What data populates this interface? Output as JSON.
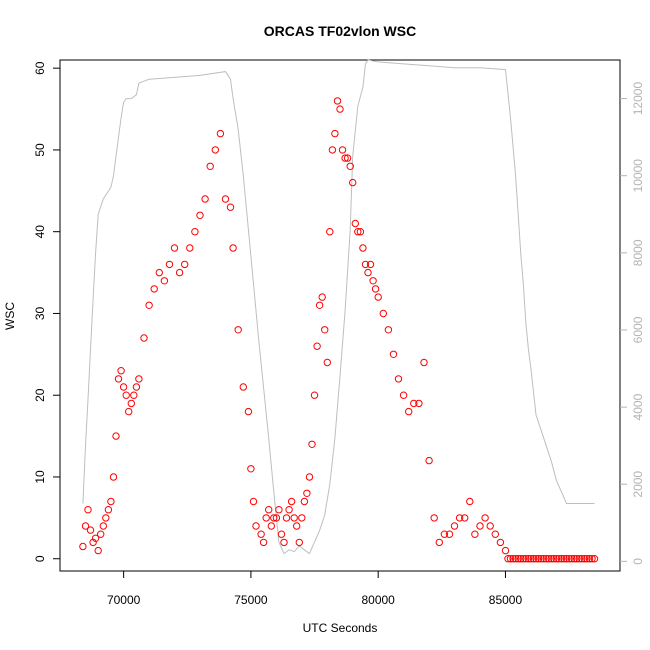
{
  "chart_data": {
    "type": "scatter",
    "title": "ORCAS TF02vlon WSC",
    "xlabel": "UTC Seconds",
    "ylabel": "WSC",
    "xlim": [
      67500,
      89500
    ],
    "ylim": [
      -1.5,
      61
    ],
    "y2lim": [
      -250,
      13000
    ],
    "x_ticks": [
      70000,
      75000,
      80000,
      85000
    ],
    "x_tick_labels": [
      "70000",
      "75000",
      "80000",
      "85000"
    ],
    "y_ticks": [
      0,
      10,
      20,
      30,
      40,
      50,
      60
    ],
    "y_tick_labels": [
      "0",
      "10",
      "20",
      "30",
      "40",
      "50",
      "60"
    ],
    "y2_ticks": [
      0,
      2000,
      4000,
      6000,
      8000,
      10000,
      12000
    ],
    "y2_tick_labels": [
      "0",
      "2000",
      "4000",
      "6000",
      "8000",
      "10000",
      "12000"
    ],
    "grid": false,
    "legend": "none",
    "colors": {
      "points": "#ff0000",
      "altitude": "#bebebe",
      "axis": "#000000",
      "right_axis": "#b3b3b3"
    },
    "series": [
      {
        "style": "open-circles",
        "color": "#ff0000",
        "x": [
          68400,
          68500,
          68600,
          68700,
          68800,
          68900,
          69000,
          69100,
          69200,
          69300,
          69400,
          69500,
          69600,
          69700,
          69800,
          69900,
          70000,
          70100,
          70200,
          70300,
          70400,
          70500,
          70600,
          70800,
          71000,
          71200,
          71400,
          71600,
          71800,
          72000,
          72200,
          72400,
          72600,
          72800,
          73000,
          73200,
          73400,
          73600,
          73800,
          74000,
          74200,
          74300,
          74500,
          74700,
          74900,
          75000,
          75100,
          75200,
          75400,
          75500,
          75600,
          75700,
          75800,
          75900,
          76000,
          76100,
          76200,
          76300,
          76400,
          76500,
          76600,
          76700,
          76800,
          76900,
          77000,
          77100,
          77200,
          77300,
          77400,
          77500,
          77600,
          77700,
          77800,
          77900,
          78000,
          78100,
          78200,
          78300,
          78400,
          78500,
          78600,
          78700,
          78800,
          78900,
          79000,
          79100,
          79200,
          79300,
          79400,
          79500,
          79600,
          79700,
          79800,
          79900,
          80000,
          80200,
          80400,
          80600,
          80800,
          81000,
          81200,
          81400,
          81600,
          81800,
          82000,
          82200,
          82400,
          82600,
          82800,
          83000,
          83200,
          83400,
          83600,
          83800,
          84000,
          84200,
          84400,
          84600,
          84800,
          85000,
          85100,
          85200,
          85300,
          85400,
          85500,
          85600,
          85700,
          85800,
          85900,
          86000,
          86100,
          86200,
          86300,
          86400,
          86500,
          86600,
          86700,
          86800,
          86900,
          87000,
          87100,
          87200,
          87300,
          87400,
          87500,
          87600,
          87700,
          87800,
          87900,
          88000,
          88100,
          88200,
          88300,
          88400,
          88500
        ],
        "y": [
          1.5,
          4,
          6,
          3.5,
          2,
          2.5,
          1,
          3,
          4,
          5,
          6,
          7,
          10,
          15,
          22,
          23,
          21,
          20,
          18,
          19,
          20,
          21,
          22,
          27,
          31,
          33,
          35,
          34,
          36,
          38,
          35,
          36,
          38,
          40,
          42,
          44,
          48,
          50,
          52,
          44,
          43,
          38,
          28,
          21,
          18,
          11,
          7,
          4,
          3,
          2,
          5,
          6,
          4,
          5,
          5,
          6,
          3,
          2,
          5,
          6,
          7,
          5,
          4,
          2,
          5,
          7,
          8,
          10,
          14,
          20,
          26,
          31,
          32,
          28,
          24,
          40,
          50,
          52,
          56,
          55,
          50,
          49,
          49,
          48,
          46,
          41,
          40,
          40,
          38,
          36,
          35,
          36,
          34,
          33,
          32,
          30,
          28,
          25,
          22,
          20,
          18,
          19,
          19,
          24,
          12,
          5,
          2,
          3,
          3,
          4,
          5,
          5,
          7,
          3,
          4,
          5,
          4,
          3,
          2,
          1,
          0,
          0,
          0,
          0,
          0,
          0,
          0,
          0,
          0,
          0,
          0,
          0,
          0,
          0,
          0,
          0,
          0,
          0,
          0,
          0,
          0,
          0,
          0,
          0,
          0,
          0,
          0,
          0,
          0,
          0,
          0,
          0,
          0,
          0,
          0
        ]
      },
      {
        "style": "line",
        "color": "#bebebe",
        "axis": "right",
        "x": [
          68400,
          68500,
          68600,
          68700,
          68800,
          68900,
          69000,
          69100,
          69200,
          69300,
          69400,
          69500,
          69600,
          69700,
          69800,
          69900,
          70000,
          70100,
          70200,
          70300,
          70500,
          70600,
          70800,
          71000,
          72000,
          73000,
          74000,
          74200,
          74300,
          74500,
          74700,
          74900,
          75100,
          75300,
          75500,
          75700,
          75900,
          76100,
          76300,
          76500,
          76700,
          76900,
          77100,
          77300,
          77500,
          77700,
          77900,
          78100,
          78300,
          78500,
          78700,
          78900,
          79000,
          79200,
          79400,
          79500,
          79600,
          80000,
          81000,
          82000,
          83000,
          84000,
          85000,
          85200,
          85400,
          85500,
          85600,
          85700,
          85800,
          85900,
          86000,
          86200,
          86400,
          86600,
          86800,
          87000,
          87200,
          87400,
          87600,
          87800,
          88000,
          88200,
          88400,
          88500
        ],
        "y": [
          1500,
          3000,
          4200,
          5500,
          6800,
          8000,
          9000,
          9200,
          9400,
          9500,
          9600,
          9700,
          10000,
          10500,
          11000,
          11500,
          11900,
          12000,
          12000,
          12000,
          12100,
          12400,
          12450,
          12500,
          12550,
          12600,
          12700,
          12500,
          12000,
          11200,
          10000,
          8600,
          7200,
          5800,
          4500,
          3200,
          1800,
          500,
          200,
          300,
          250,
          400,
          300,
          200,
          500,
          800,
          1200,
          2000,
          3200,
          4800,
          6500,
          8600,
          10500,
          11800,
          12300,
          12900,
          13000,
          12950,
          12900,
          12850,
          12800,
          12800,
          12750,
          11500,
          10000,
          9000,
          8000,
          7200,
          6200,
          5500,
          5000,
          3800,
          3400,
          3000,
          2600,
          2100,
          1800,
          1500,
          1500,
          1500,
          1500,
          1500,
          1500,
          1500
        ]
      }
    ]
  }
}
